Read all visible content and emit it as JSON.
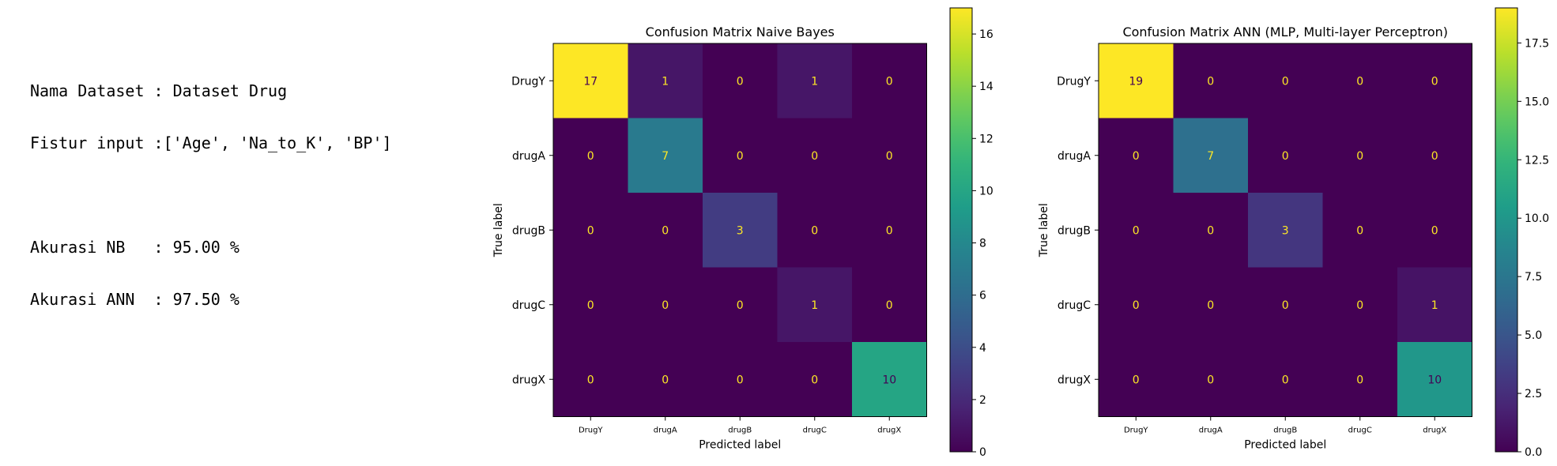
{
  "info": {
    "dataset_line": "Nama Dataset : Dataset Drug",
    "features_line": "Fistur input :['Age', 'Na_to_K', 'BP']",
    "acc_nb_line": "Akurasi NB   : 95.00 %",
    "acc_ann_line": "Akurasi ANN  : 97.50 %"
  },
  "chart_data": [
    {
      "type": "heatmap",
      "title": "Confusion Matrix Naive Bayes",
      "xlabel": "Predicted label",
      "ylabel": "True label",
      "x_categories": [
        "DrugY",
        "drugA",
        "drugB",
        "drugC",
        "drugX"
      ],
      "y_categories": [
        "DrugY",
        "drugA",
        "drugB",
        "drugC",
        "drugX"
      ],
      "matrix": [
        [
          17,
          1,
          0,
          1,
          0
        ],
        [
          0,
          7,
          0,
          0,
          0
        ],
        [
          0,
          0,
          3,
          0,
          0
        ],
        [
          0,
          0,
          0,
          1,
          0
        ],
        [
          0,
          0,
          0,
          0,
          10
        ]
      ],
      "vmin": 0,
      "vmax": 17,
      "colorbar_ticks": [
        "0",
        "2",
        "4",
        "6",
        "8",
        "10",
        "12",
        "14",
        "16"
      ],
      "colorbar_tick_values": [
        0,
        2,
        4,
        6,
        8,
        10,
        12,
        14,
        16
      ],
      "colormap": "viridis"
    },
    {
      "type": "heatmap",
      "title": "Confusion Matrix ANN (MLP, Multi-layer Perceptron)",
      "xlabel": "Predicted label",
      "ylabel": "True label",
      "x_categories": [
        "DrugY",
        "drugA",
        "drugB",
        "drugC",
        "drugX"
      ],
      "y_categories": [
        "DrugY",
        "drugA",
        "drugB",
        "drugC",
        "drugX"
      ],
      "matrix": [
        [
          19,
          0,
          0,
          0,
          0
        ],
        [
          0,
          7,
          0,
          0,
          0
        ],
        [
          0,
          0,
          3,
          0,
          0
        ],
        [
          0,
          0,
          0,
          0,
          1
        ],
        [
          0,
          0,
          0,
          0,
          10
        ]
      ],
      "vmin": 0,
      "vmax": 19,
      "colorbar_ticks": [
        "0.0",
        "2.5",
        "5.0",
        "7.5",
        "10.0",
        "12.5",
        "15.0",
        "17.5"
      ],
      "colorbar_tick_values": [
        0,
        2.5,
        5,
        7.5,
        10,
        12.5,
        15,
        17.5
      ],
      "colormap": "viridis"
    }
  ]
}
